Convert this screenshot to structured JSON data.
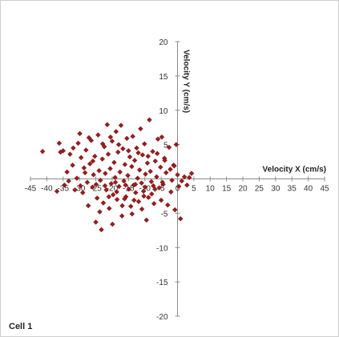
{
  "caption": "Cell 1",
  "colors": {
    "marker": "#9b1c1c",
    "marker_edge": "#5e0d0d",
    "axis": "#8c8c8c"
  },
  "chart_data": {
    "type": "scatter",
    "title": "",
    "xlabel": "Velocity X (cm/s)",
    "ylabel": "Velocity Y (cm/s)",
    "xlim": [
      -45,
      45
    ],
    "ylim": [
      -20,
      20
    ],
    "x_ticks": [
      -45,
      -40,
      -35,
      -30,
      -25,
      -20,
      -15,
      -10,
      -5,
      0,
      5,
      10,
      15,
      20,
      25,
      30,
      35,
      40,
      45
    ],
    "y_ticks": [
      -20,
      -15,
      -10,
      -5,
      0,
      5,
      10,
      15,
      20
    ],
    "marker": "diamond",
    "grid": false,
    "legend": "none",
    "series": [
      {
        "values": [
          {
            "x": -41.3,
            "y": 4.0
          },
          {
            "x": -36.2,
            "y": 5.2
          },
          {
            "x": -35.8,
            "y": 3.9
          },
          {
            "x": -35.0,
            "y": 4.1
          },
          {
            "x": -34.6,
            "y": -0.9
          },
          {
            "x": -33.8,
            "y": 1.0
          },
          {
            "x": -32.9,
            "y": 3.6
          },
          {
            "x": -32.1,
            "y": 2.0
          },
          {
            "x": -31.4,
            "y": -1.6
          },
          {
            "x": -30.8,
            "y": 0.1
          },
          {
            "x": -30.4,
            "y": 5.2
          },
          {
            "x": -29.9,
            "y": 6.6
          },
          {
            "x": -29.5,
            "y": 3.1
          },
          {
            "x": -29.0,
            "y": -2.0
          },
          {
            "x": -28.6,
            "y": 1.6
          },
          {
            "x": -28.0,
            "y": 4.2
          },
          {
            "x": -27.6,
            "y": -0.5
          },
          {
            "x": -27.3,
            "y": -3.9
          },
          {
            "x": -26.8,
            "y": 2.2
          },
          {
            "x": -26.4,
            "y": 5.6
          },
          {
            "x": -26.0,
            "y": -1.2
          },
          {
            "x": -25.7,
            "y": 0.6
          },
          {
            "x": -25.3,
            "y": 3.3
          },
          {
            "x": -25.0,
            "y": -6.3
          },
          {
            "x": -24.6,
            "y": -2.8
          },
          {
            "x": -24.3,
            "y": 6.4
          },
          {
            "x": -24.0,
            "y": 1.2
          },
          {
            "x": -23.6,
            "y": -0.2
          },
          {
            "x": -23.3,
            "y": -7.4
          },
          {
            "x": -23.0,
            "y": 2.9
          },
          {
            "x": -22.7,
            "y": -3.5
          },
          {
            "x": -22.4,
            "y": 4.7
          },
          {
            "x": -22.1,
            "y": 0.8
          },
          {
            "x": -21.8,
            "y": -1.6
          },
          {
            "x": -21.5,
            "y": 7.9
          },
          {
            "x": -21.2,
            "y": 3.6
          },
          {
            "x": -20.9,
            "y": -4.3
          },
          {
            "x": -20.6,
            "y": 1.5
          },
          {
            "x": -20.3,
            "y": -0.7
          },
          {
            "x": -20.0,
            "y": 5.5
          },
          {
            "x": -19.7,
            "y": -2.3
          },
          {
            "x": -19.4,
            "y": 2.4
          },
          {
            "x": -19.1,
            "y": 0.2
          },
          {
            "x": -18.8,
            "y": 6.9
          },
          {
            "x": -18.5,
            "y": -3.0
          },
          {
            "x": -18.2,
            "y": 3.9
          },
          {
            "x": -17.9,
            "y": -1.1
          },
          {
            "x": -17.6,
            "y": 1.0
          },
          {
            "x": -17.3,
            "y": 7.8
          },
          {
            "x": -17.0,
            "y": -5.4
          },
          {
            "x": -16.7,
            "y": 4.4
          },
          {
            "x": -16.4,
            "y": -0.3
          },
          {
            "x": -16.1,
            "y": 2.1
          },
          {
            "x": -15.8,
            "y": -2.6
          },
          {
            "x": -15.5,
            "y": 5.9
          },
          {
            "x": -15.2,
            "y": 0.5
          },
          {
            "x": -14.9,
            "y": -1.5
          },
          {
            "x": -14.6,
            "y": 3.2
          },
          {
            "x": -14.3,
            "y": -4.0
          },
          {
            "x": -14.0,
            "y": 1.8
          },
          {
            "x": -13.7,
            "y": 6.2
          },
          {
            "x": -13.4,
            "y": -0.9
          },
          {
            "x": -13.1,
            "y": 2.7
          },
          {
            "x": -12.8,
            "y": -2.0
          },
          {
            "x": -12.5,
            "y": 4.5
          },
          {
            "x": -12.2,
            "y": 0.1
          },
          {
            "x": -11.9,
            "y": -3.3
          },
          {
            "x": -11.6,
            "y": 1.3
          },
          {
            "x": -11.3,
            "y": 7.3
          },
          {
            "x": -11.0,
            "y": -0.6
          },
          {
            "x": -10.7,
            "y": 3.5
          },
          {
            "x": -10.4,
            "y": -1.8
          },
          {
            "x": -10.1,
            "y": 5.1
          },
          {
            "x": -9.8,
            "y": 0.7
          },
          {
            "x": -9.5,
            "y": -6.0
          },
          {
            "x": -9.2,
            "y": 2.3
          },
          {
            "x": -8.9,
            "y": -2.7
          },
          {
            "x": -8.6,
            "y": 8.6
          },
          {
            "x": -8.3,
            "y": 1.1
          },
          {
            "x": -8.0,
            "y": -0.4
          },
          {
            "x": -7.6,
            "y": 4.0
          },
          {
            "x": -7.2,
            "y": -3.6
          },
          {
            "x": -6.8,
            "y": 2.6
          },
          {
            "x": -6.4,
            "y": 0.3
          },
          {
            "x": -6.0,
            "y": 5.8
          },
          {
            "x": -5.6,
            "y": -1.3
          },
          {
            "x": -5.2,
            "y": 1.7
          },
          {
            "x": -4.8,
            "y": 6.1
          },
          {
            "x": -4.4,
            "y": -0.8
          },
          {
            "x": -4.0,
            "y": 3.0
          },
          {
            "x": -3.5,
            "y": 0.9
          },
          {
            "x": -3.0,
            "y": -3.8
          },
          {
            "x": -2.6,
            "y": 4.6
          },
          {
            "x": -2.2,
            "y": 1.4
          },
          {
            "x": -1.7,
            "y": -0.2
          },
          {
            "x": -1.2,
            "y": 2.0
          },
          {
            "x": -0.8,
            "y": -4.5
          },
          {
            "x": -0.4,
            "y": 5.0
          },
          {
            "x": 0.0,
            "y": 0.6
          },
          {
            "x": 0.4,
            "y": -1.1
          },
          {
            "x": 0.9,
            "y": -5.8
          },
          {
            "x": 1.3,
            "y": -0.3
          },
          {
            "x": 2.1,
            "y": 0.3
          },
          {
            "x": 2.9,
            "y": -0.9
          },
          {
            "x": 3.6,
            "y": 0.2
          },
          {
            "x": 4.3,
            "y": 0.8
          },
          {
            "x": -36.9,
            "y": -1.8
          },
          {
            "x": -27.1,
            "y": 6.0
          },
          {
            "x": -23.8,
            "y": -4.8
          },
          {
            "x": -19.9,
            "y": -6.6
          },
          {
            "x": -16.9,
            "y": -3.9
          },
          {
            "x": -13.9,
            "y": -5.1
          },
          {
            "x": -10.9,
            "y": -4.4
          },
          {
            "x": -7.9,
            "y": -2.2
          },
          {
            "x": -5.0,
            "y": -3.1
          },
          {
            "x": -2.0,
            "y": -1.9
          },
          {
            "x": -31.9,
            "y": 4.5
          },
          {
            "x": -28.3,
            "y": 0.9
          },
          {
            "x": -25.9,
            "y": 2.6
          },
          {
            "x": -22.9,
            "y": 5.1
          },
          {
            "x": -20.5,
            "y": 6.1
          },
          {
            "x": -18.0,
            "y": 5.0
          },
          {
            "x": -15.0,
            "y": 4.1
          },
          {
            "x": -12.0,
            "y": 3.8
          },
          {
            "x": -9.0,
            "y": 3.3
          },
          {
            "x": -6.2,
            "y": 3.7
          },
          {
            "x": -21.0,
            "y": -2.6
          },
          {
            "x": -18.6,
            "y": -1.9
          },
          {
            "x": -16.2,
            "y": -2.9
          },
          {
            "x": -13.3,
            "y": -3.1
          },
          {
            "x": -10.3,
            "y": -2.5
          },
          {
            "x": -7.4,
            "y": -1.0
          },
          {
            "x": -4.6,
            "y": -0.5
          },
          {
            "x": -1.0,
            "y": 1.9
          },
          {
            "x": -33.3,
            "y": -0.3
          },
          {
            "x": -29.7,
            "y": -1.0
          },
          {
            "x": -24.9,
            "y": -0.8
          },
          {
            "x": -22.2,
            "y": -1.0
          },
          {
            "x": -19.0,
            "y": -0.5
          },
          {
            "x": -15.9,
            "y": -0.9
          },
          {
            "x": -12.9,
            "y": -0.8
          },
          {
            "x": -9.9,
            "y": -1.2
          },
          {
            "x": -6.9,
            "y": -1.5
          },
          {
            "x": -3.9,
            "y": 2.7
          }
        ]
      }
    ]
  }
}
